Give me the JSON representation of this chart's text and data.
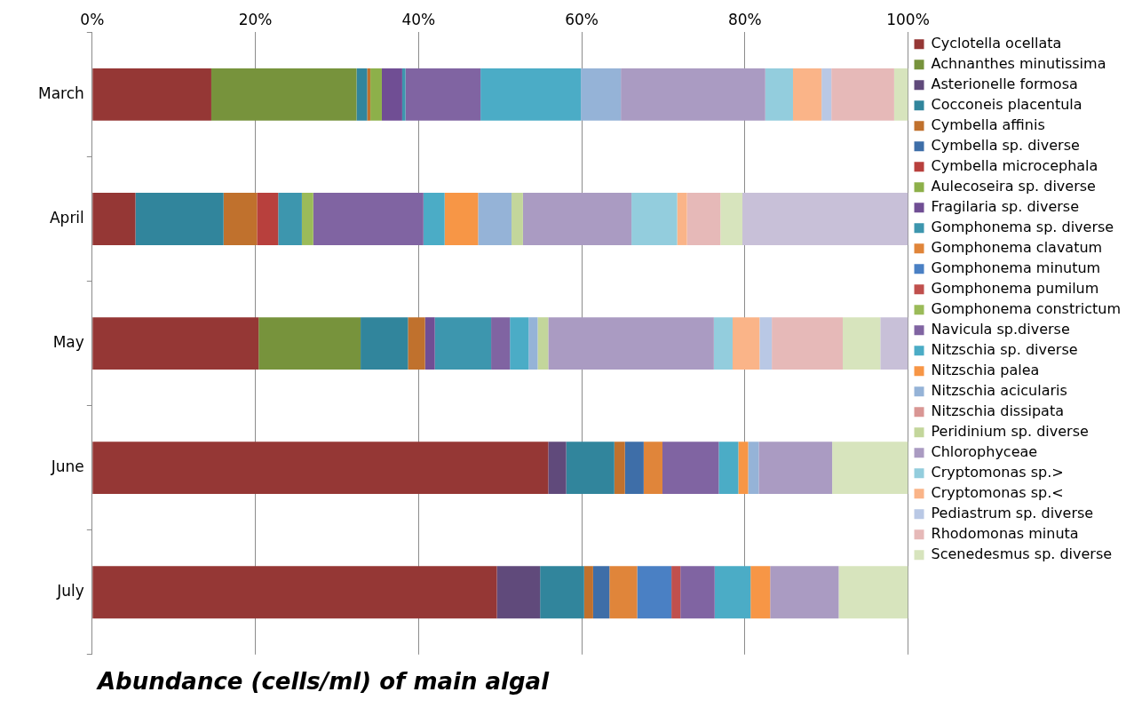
{
  "chart_data": {
    "type": "bar",
    "orientation": "horizontal",
    "stacked": true,
    "title": "Abundance (cells/ml) of  main algal",
    "categories": [
      "March",
      "April",
      "May",
      "June",
      "July"
    ],
    "xlim": [
      0,
      100
    ],
    "xticks": [
      {
        "value": 0,
        "label": "0%"
      },
      {
        "value": 20,
        "label": "20%"
      },
      {
        "value": 40,
        "label": "40%"
      },
      {
        "value": 60,
        "label": "60%"
      },
      {
        "value": 80,
        "label": "80%"
      },
      {
        "value": 100,
        "label": "100%"
      }
    ],
    "grid": "x",
    "legend": "right",
    "series": [
      {
        "name": "Cyclotella ocellata",
        "color": "#953735",
        "values": [
          14.6,
          5.3,
          20.4,
          55.9,
          49.6
        ]
      },
      {
        "name": "Achnanthes minutissima",
        "color": "#77933c",
        "values": [
          17.8,
          0,
          12.5,
          0,
          0
        ]
      },
      {
        "name": "Asterionelle formosa",
        "color": "#604a7b",
        "values": [
          0,
          0,
          0,
          2.2,
          5.3
        ]
      },
      {
        "name": "Cocconeis placentula",
        "color": "#31859c",
        "values": [
          1.3,
          10.8,
          5.8,
          5.9,
          5.4
        ]
      },
      {
        "name": "Cymbella affinis",
        "color": "#c0712d",
        "values": [
          0.4,
          4.1,
          2.1,
          1.3,
          1.1
        ]
      },
      {
        "name": "Cymbella sp. diverse",
        "color": "#3e6ea8",
        "values": [
          0,
          0,
          0,
          2.3,
          2.0
        ]
      },
      {
        "name": "Cymbella microcephala",
        "color": "#b8403d",
        "values": [
          0,
          2.6,
          0,
          0,
          0
        ]
      },
      {
        "name": "Aulecoseira sp. diverse",
        "color": "#8db04a",
        "values": [
          1.4,
          0,
          0,
          0,
          0
        ]
      },
      {
        "name": "Fragilaria sp. diverse",
        "color": "#704e94",
        "values": [
          2.5,
          0,
          1.2,
          0,
          0
        ]
      },
      {
        "name": "Gomphonema sp. diverse",
        "color": "#3d96ae",
        "values": [
          0.4,
          2.9,
          6.9,
          0,
          0
        ]
      },
      {
        "name": "Gomphonema clavatum",
        "color": "#e0853a",
        "values": [
          0,
          0,
          0,
          2.3,
          3.4
        ]
      },
      {
        "name": "Gomphonema minutum",
        "color": "#4a80c4",
        "values": [
          0,
          0,
          0,
          0,
          4.2
        ]
      },
      {
        "name": "Gomphonema pumilum",
        "color": "#c0504d",
        "values": [
          0,
          0,
          0,
          0,
          1.1
        ]
      },
      {
        "name": "Gomphonema constrictum",
        "color": "#9bbb59",
        "values": [
          0,
          1.4,
          0,
          0,
          0
        ]
      },
      {
        "name": "Navicula sp.diverse",
        "color": "#8064a2",
        "values": [
          9.2,
          13.5,
          2.3,
          6.9,
          4.2
        ]
      },
      {
        "name": "Nitzschia sp. diverse",
        "color": "#4bacc6",
        "values": [
          12.3,
          2.6,
          2.3,
          2.4,
          4.4
        ]
      },
      {
        "name": "Nitzschia palea",
        "color": "#f79646",
        "values": [
          0,
          4.1,
          0,
          1.2,
          2.4
        ]
      },
      {
        "name": "Nitzschia acicularis",
        "color": "#95b3d7",
        "values": [
          4.9,
          4.1,
          1.1,
          1.3,
          0
        ]
      },
      {
        "name": "Nitzschia dissipata",
        "color": "#d99694",
        "values": [
          0,
          0,
          0,
          0,
          0
        ]
      },
      {
        "name": "Peridinium sp. diverse",
        "color": "#c3d69b",
        "values": [
          0,
          1.4,
          1.3,
          0,
          0
        ]
      },
      {
        "name": "Chlorophyceae",
        "color": "#aa9bc2",
        "values": [
          17.7,
          13.3,
          20.3,
          9.0,
          8.4
        ]
      },
      {
        "name": "Cryptomonas sp.>",
        "color": "#93cddd",
        "values": [
          3.4,
          5.6,
          2.3,
          0,
          0
        ]
      },
      {
        "name": "Cryptomonas sp.<",
        "color": "#fab488",
        "values": [
          3.5,
          1.2,
          3.3,
          0,
          0
        ]
      },
      {
        "name": "Pediastrum sp. diverse",
        "color": "#b9c8e5",
        "values": [
          1.2,
          0,
          1.5,
          0,
          0
        ]
      },
      {
        "name": "Rhodomonas minuta",
        "color": "#e6b9b8",
        "values": [
          7.7,
          4.1,
          8.7,
          0,
          0
        ]
      },
      {
        "name": "Scenedesmus sp. diverse",
        "color": "#d7e4bd",
        "values": [
          1.7,
          2.7,
          4.6,
          9.3,
          8.5
        ]
      },
      {
        "color": "#c8c0d8",
        "values": [
          0,
          20.3,
          3.4,
          0,
          0
        ]
      }
    ]
  }
}
